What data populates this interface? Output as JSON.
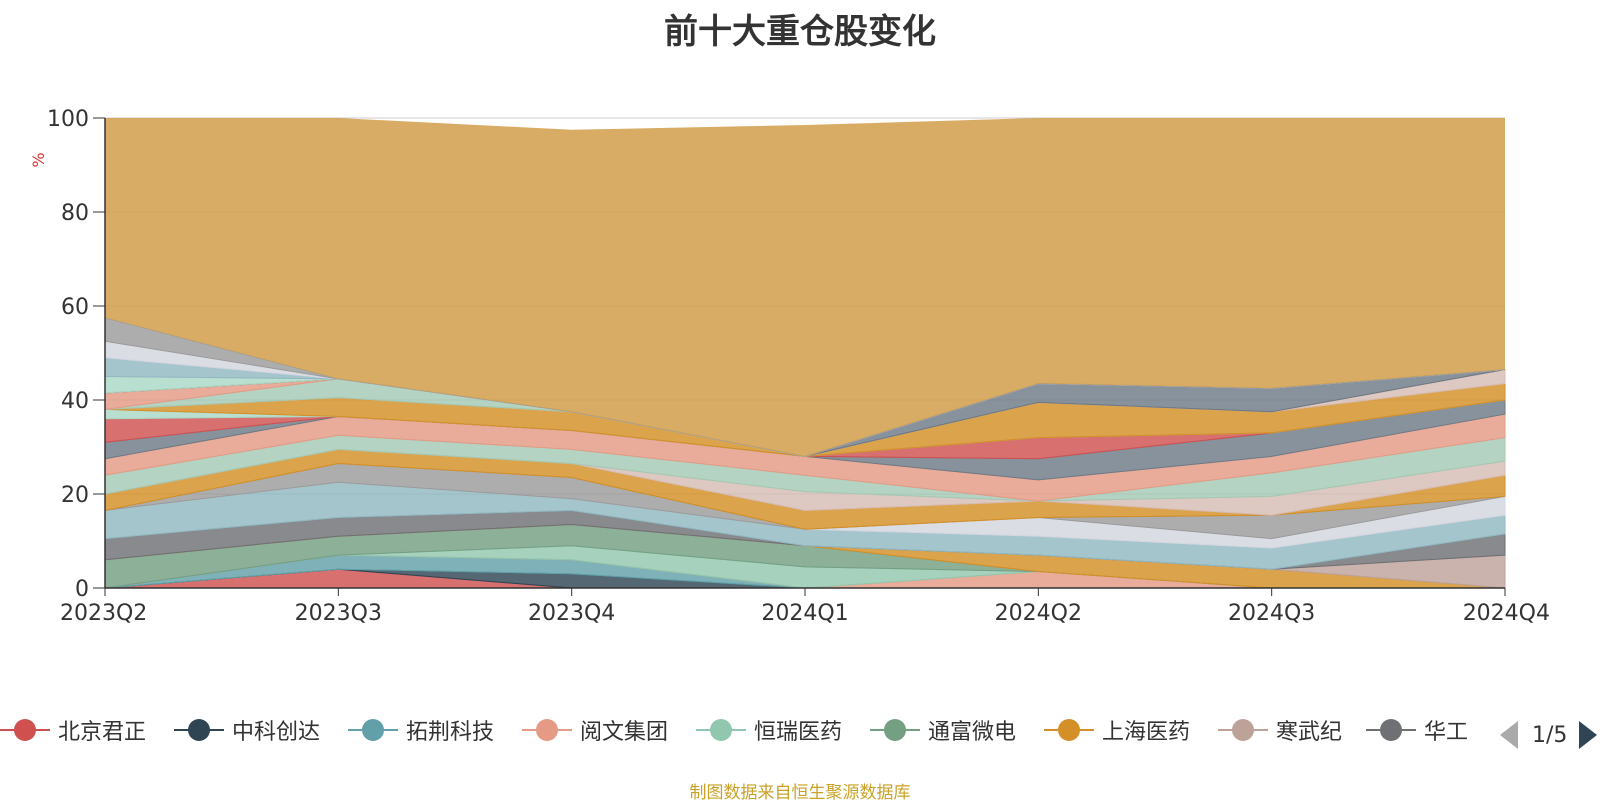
{
  "chart_data": {
    "type": "area",
    "stacked": true,
    "title": "前十大重仓股变化",
    "ylabel": "%",
    "ylim": [
      0,
      100
    ],
    "yticks": [
      0,
      20,
      40,
      60,
      80,
      100
    ],
    "grid": true,
    "categories": [
      "2023Q2",
      "2023Q3",
      "2023Q4",
      "2024Q1",
      "2024Q2",
      "2024Q3",
      "2024Q4"
    ],
    "series": [
      {
        "name": "北京君正",
        "color": "#d05050",
        "values": [
          0,
          4,
          0,
          0,
          0,
          0,
          0
        ]
      },
      {
        "name": "中科创达",
        "color": "#2f4554",
        "values": [
          0,
          0,
          3,
          0,
          0,
          0,
          0
        ]
      },
      {
        "name": "拓荆科技",
        "color": "#61a0a8",
        "values": [
          0,
          3,
          3,
          0,
          0,
          0,
          0
        ]
      },
      {
        "name": "阅文集团",
        "color": "#e49a85",
        "values": [
          0,
          0,
          0,
          0,
          3.5,
          0,
          0
        ]
      },
      {
        "name": "恒瑞医药",
        "color": "#91c7ae",
        "values": [
          0,
          0,
          3,
          4.5,
          0,
          0,
          0
        ]
      },
      {
        "name": "通富微电",
        "color": "#749f83",
        "values": [
          6,
          4,
          4.5,
          4.5,
          0,
          0,
          0
        ]
      },
      {
        "name": "上海医药",
        "color": "#d48f26",
        "values": [
          0,
          0,
          0,
          0,
          3.5,
          4,
          0
        ]
      },
      {
        "name": "寒武纪",
        "color": "#bda29a",
        "values": [
          0,
          0,
          0,
          0,
          0,
          0,
          7
        ]
      },
      {
        "name": "华工科技",
        "color": "#6e7074",
        "values": [
          4.5,
          4,
          3,
          0,
          0,
          0,
          4.5
        ]
      }
    ],
    "other_series_colors": [
      "#91b8c2",
      "#d3d6df",
      "#9b9b9b",
      "#d48f26",
      "#d6bcb4",
      "#a3c9b4",
      "#e49a85",
      "#6e7a86",
      "#d05050",
      "#a9d8c6"
    ],
    "other_layers": [
      [
        0,
        4,
        4,
        0,
        7.5,
        4.5,
        3.5
      ],
      [
        0,
        0,
        0,
        0,
        0,
        0,
        3
      ],
      [
        0,
        4,
        0,
        0,
        0,
        0,
        0
      ],
      [
        3.5,
        0,
        0,
        0,
        0,
        0,
        0
      ],
      [
        0,
        0,
        0,
        0,
        4,
        5,
        0
      ],
      [
        0,
        0,
        0,
        0,
        0,
        0,
        0
      ],
      [
        3.5,
        0,
        0,
        0,
        0,
        0,
        0
      ],
      [
        4,
        0,
        0,
        0,
        0,
        0,
        0
      ],
      [
        3.5,
        0,
        0,
        0,
        0,
        0,
        0
      ],
      [
        5,
        0,
        0,
        0,
        0,
        0,
        0
      ]
    ],
    "tops": [
      100,
      100,
      97.5,
      98.5,
      100,
      100,
      100
    ],
    "mid_layers": [
      [
        6,
        7.5,
        2.5,
        3.5,
        4,
        4.5,
        4
      ],
      [
        0,
        0,
        0,
        0,
        4,
        2,
        4
      ],
      [
        0,
        4,
        4.5,
        0,
        0,
        5,
        0
      ],
      [
        3.5,
        3,
        3,
        4,
        3.5,
        0,
        4.5
      ],
      [
        0,
        0,
        0,
        4,
        0,
        4,
        3
      ],
      [
        4,
        3,
        3,
        3.5,
        0,
        5,
        5
      ],
      [
        3.5,
        4,
        4,
        4,
        4.5,
        3.5,
        5
      ],
      [
        3.5,
        0,
        0,
        0,
        4.5,
        5,
        3
      ],
      [
        5,
        0,
        0,
        0,
        4.5,
        0,
        0
      ],
      [
        2,
        0,
        0,
        0,
        0,
        0,
        0
      ]
    ],
    "legend": {
      "items": [
        "北京君正",
        "中科创达",
        "拓荆科技",
        "阅文集团",
        "恒瑞医药",
        "通富微电",
        "上海医药",
        "寒武纪",
        "华工科技"
      ],
      "visible_text_last": "华工",
      "page": "1/5"
    },
    "source": "制图数据来自恒生聚源数据库"
  }
}
